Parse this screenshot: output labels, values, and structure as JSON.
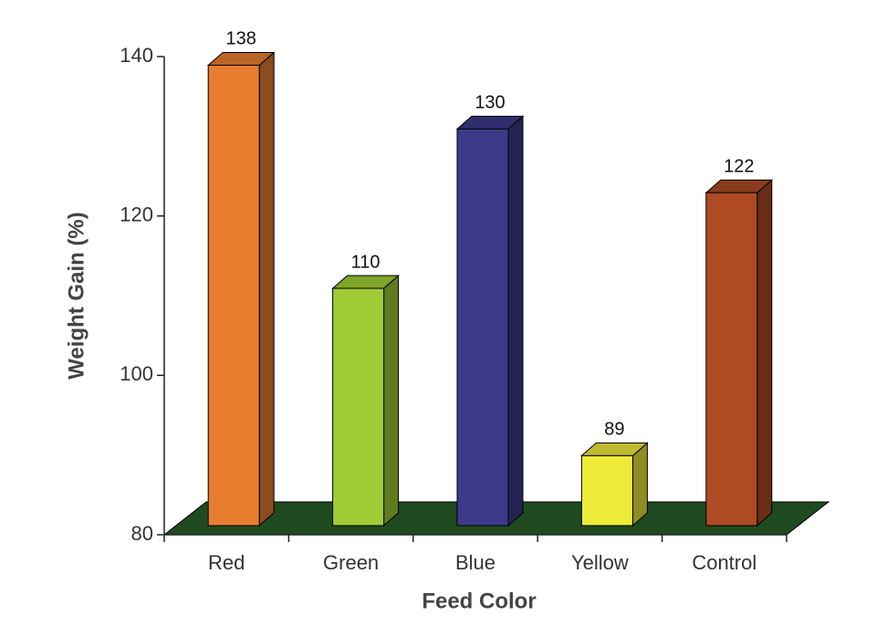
{
  "chart_data": {
    "type": "bar3d",
    "x_label": "Feed Color",
    "y_label": "Weight Gain (%)",
    "categories": [
      "Red",
      "Green",
      "Blue",
      "Yellow",
      "Control"
    ],
    "values": [
      138,
      110,
      130,
      89,
      122
    ],
    "colors": [
      "#e87d30",
      "#a0cc35",
      "#3d3a8a",
      "#eeea3a",
      "#ae4b25"
    ],
    "floor_color": "#1f4a1f",
    "ylim": [
      80,
      140
    ],
    "yticks": [
      80,
      100,
      120,
      140
    ]
  }
}
